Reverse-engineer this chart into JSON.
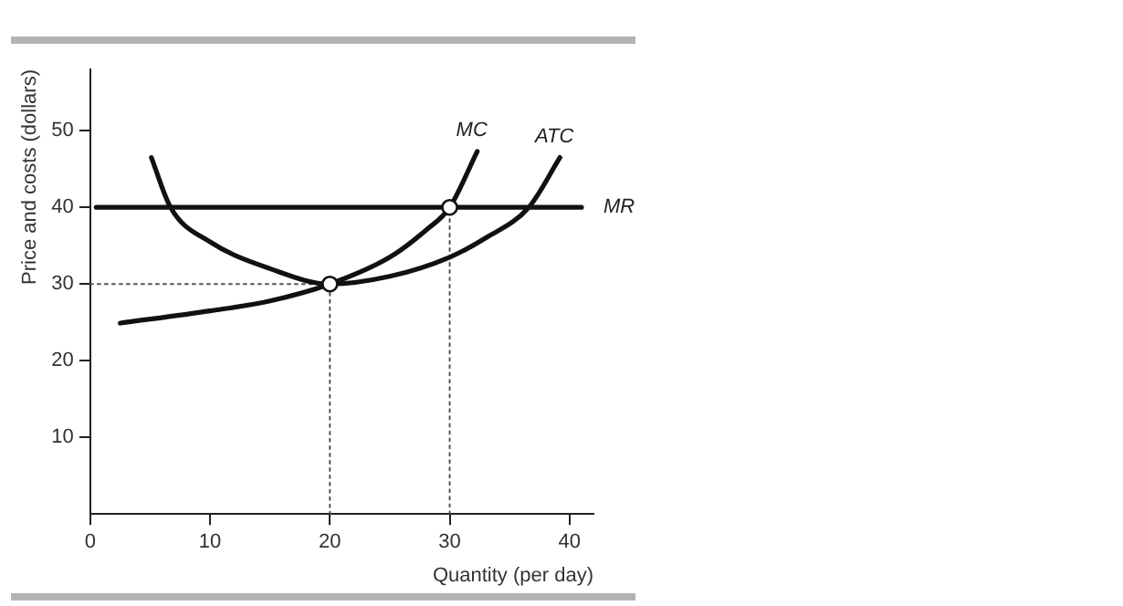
{
  "chart_data": {
    "type": "line",
    "xlabel": "Quantity (per day)",
    "ylabel": "Price and costs (dollars)",
    "xlim": [
      0,
      42
    ],
    "ylim": [
      0,
      58
    ],
    "xticks": [
      0,
      10,
      20,
      30,
      40
    ],
    "yticks": [
      10,
      20,
      30,
      40,
      50
    ],
    "grid": false,
    "legend": false,
    "marker": "none",
    "series": [
      {
        "color": "#111111",
        "x": [
          5.1,
          6.7,
          10,
          15,
          20,
          25,
          30,
          33,
          36.6,
          39.2
        ],
        "values": [
          46.5,
          40,
          35.5,
          32,
          30,
          31,
          33.5,
          36,
          40,
          46.5
        ]
      },
      {
        "color": "#111111",
        "x": [
          2.5,
          10,
          15,
          20,
          25,
          28,
          30,
          32.3
        ],
        "values": [
          24.9,
          26.5,
          27.8,
          30,
          33.5,
          37,
          40,
          47.3
        ]
      },
      {
        "color": "#111111",
        "x": [
          0.5,
          41
        ],
        "values": [
          40,
          40
        ]
      },
      {
        "color": "#555555",
        "line_style": "dotted",
        "x": [
          0,
          20,
          20
        ],
        "values": [
          30,
          30,
          0
        ]
      },
      {
        "color": "#555555",
        "line_style": "dotted",
        "x": [
          30,
          30
        ],
        "values": [
          0,
          40
        ]
      },
      {
        "type": "scatter",
        "color": "#111111",
        "marker": "circle",
        "x": [
          20,
          30
        ],
        "values": [
          30,
          40
        ]
      }
    ],
    "annotations": [
      {
        "text": "MC",
        "x": 32.3,
        "y": 47.3
      },
      {
        "text": "ATC",
        "x": 39.2,
        "y": 46.5
      },
      {
        "text": "MR",
        "x": 41,
        "y": 40
      }
    ]
  }
}
